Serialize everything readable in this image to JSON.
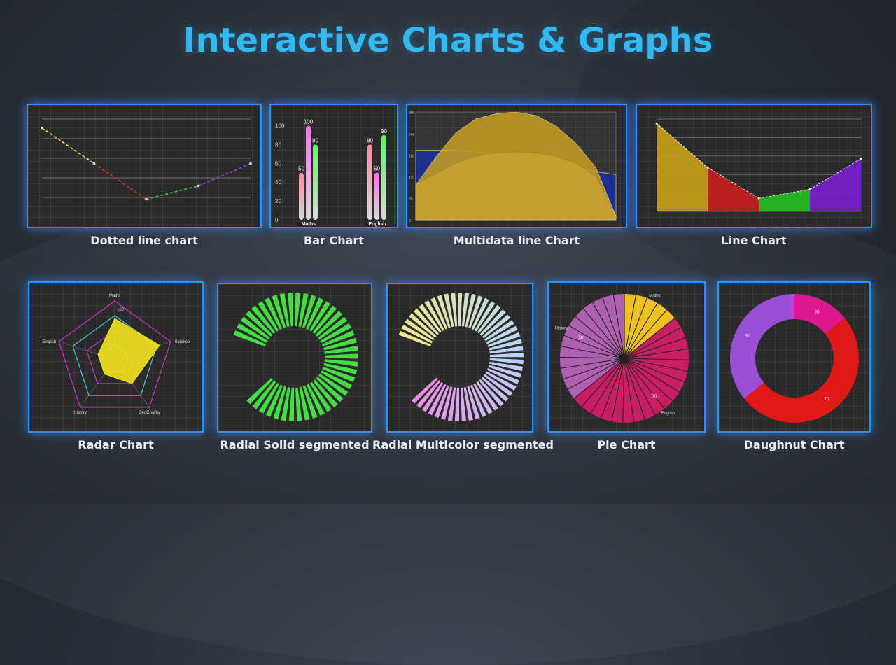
{
  "page": {
    "title": "Interactive Charts & Graphs"
  },
  "colors": {
    "accent": "#33b9f2",
    "panel_border": "#2f8fff",
    "caption": "#e8eef7"
  },
  "chart_data": [
    {
      "id": "dotted",
      "caption": "Dotted line chart",
      "type": "line",
      "style": "dashed",
      "x": [
        "",
        "",
        "",
        "",
        ""
      ],
      "values": [
        100,
        60,
        20,
        35,
        60
      ],
      "segment_colors": [
        "#f0e040",
        "#e03030",
        "#40d040",
        "#a040f0"
      ],
      "ylim": [
        0,
        110
      ]
    },
    {
      "id": "bar",
      "caption": "Bar Chart",
      "type": "bar",
      "categories": [
        "Maths",
        "English"
      ],
      "series": [
        {
          "values": [
            50,
            80
          ],
          "color": "#ff8aa0"
        },
        {
          "values": [
            100,
            50
          ],
          "color": "#ff6ef0"
        },
        {
          "values": [
            80,
            90
          ],
          "color": "#55ff55"
        }
      ],
      "yticks": [
        "0",
        "20",
        "40",
        "60",
        "80",
        "100"
      ],
      "ylim": [
        0,
        110
      ]
    },
    {
      "id": "multidata",
      "caption": "Multidata line Chart",
      "type": "area",
      "yticks": [
        "300",
        "240",
        "180",
        "120",
        "60",
        "0"
      ],
      "series": [
        {
          "values": [
            200,
            200,
            200,
            195,
            188,
            180,
            170,
            160,
            148,
            138,
            130
          ],
          "color": "#1a2fa0"
        },
        {
          "values": [
            100,
            130,
            160,
            180,
            190,
            192,
            190,
            180,
            160,
            120,
            10
          ],
          "color": "#c9a88a"
        },
        {
          "values": [
            100,
            180,
            250,
            290,
            305,
            310,
            300,
            270,
            220,
            150,
            10
          ],
          "color": "#c8a020"
        }
      ],
      "ylim": [
        0,
        310
      ]
    },
    {
      "id": "line",
      "caption": "Line Chart",
      "type": "area",
      "values": [
        100,
        50,
        15,
        25,
        60
      ],
      "segment_colors": [
        "#c8a018",
        "#c81e1e",
        "#22c022",
        "#7a1ed0"
      ],
      "ylim": [
        0,
        105
      ]
    },
    {
      "id": "radar",
      "caption": "Radar Chart",
      "type": "radar",
      "axes": [
        "Maths",
        "Science",
        "GeoGraphy",
        "History",
        "English"
      ],
      "values": [
        70,
        80,
        50,
        30,
        30
      ],
      "tick_label": "100",
      "rmax": 100
    },
    {
      "id": "radial_solid",
      "caption": "Radial Solid segmented",
      "type": "radial",
      "segments": 42,
      "color": "#44dd44",
      "sweep_deg": 300,
      "start_deg": 200
    },
    {
      "id": "radial_multi",
      "caption": "Radial Multicolor segmented",
      "type": "radial",
      "segments": 48,
      "gradient": [
        "#f0e890",
        "#b8d8f8",
        "#e890e8"
      ],
      "sweep_deg": 300,
      "start_deg": 200
    },
    {
      "id": "pie",
      "caption": "Pie Chart",
      "type": "pie",
      "slices": [
        {
          "label": "Maths",
          "value": 20,
          "color": "#f0c020"
        },
        {
          "label": "English",
          "value": 70,
          "color": "#c81e64",
          "data_label": "70"
        },
        {
          "label": "History",
          "value": 50,
          "color": "#b060b0",
          "data_label": "50"
        }
      ]
    },
    {
      "id": "donut",
      "caption": "Daughnut Chart",
      "type": "pie",
      "slices": [
        {
          "value": 20,
          "color": "#e01890",
          "data_label": "20"
        },
        {
          "value": 70,
          "color": "#e01818",
          "data_label": "70"
        },
        {
          "value": 50,
          "color": "#9850d8",
          "data_label": "50"
        }
      ]
    }
  ]
}
